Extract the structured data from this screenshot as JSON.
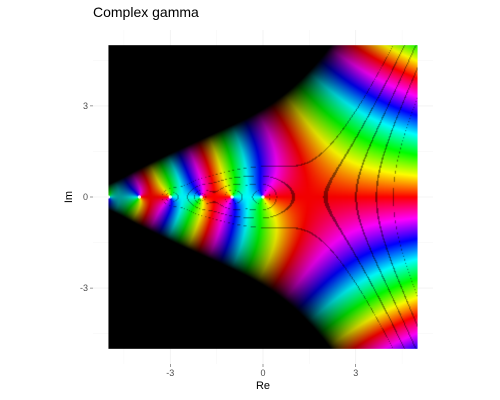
{
  "chart_data": {
    "type": "heatmap",
    "title": "Complex gamma",
    "xlabel": "Re",
    "ylabel": "Im",
    "function": "gamma(z)",
    "color_mapping": "domain coloring: hue = arg(z), brightness increases with |z|, contour rings where log2|z| crosses integers",
    "xlim": [
      -5,
      5
    ],
    "ylim": [
      -5,
      5
    ],
    "panel_xlim": [
      -5.5,
      5.5
    ],
    "panel_ylim": [
      -5.5,
      5.5
    ],
    "x_ticks": [
      {
        "value": -3,
        "label": "-3"
      },
      {
        "value": 0,
        "label": "0"
      },
      {
        "value": 3,
        "label": "3"
      }
    ],
    "y_ticks": [
      {
        "value": 3,
        "label": "3"
      },
      {
        "value": 0,
        "label": "0"
      },
      {
        "value": -3,
        "label": "-3"
      }
    ],
    "poles": [
      0,
      -1,
      -2,
      -3,
      -4,
      -5
    ],
    "grid": true,
    "background": "#ffffff",
    "panel_grid_color": "#ebebeb"
  }
}
